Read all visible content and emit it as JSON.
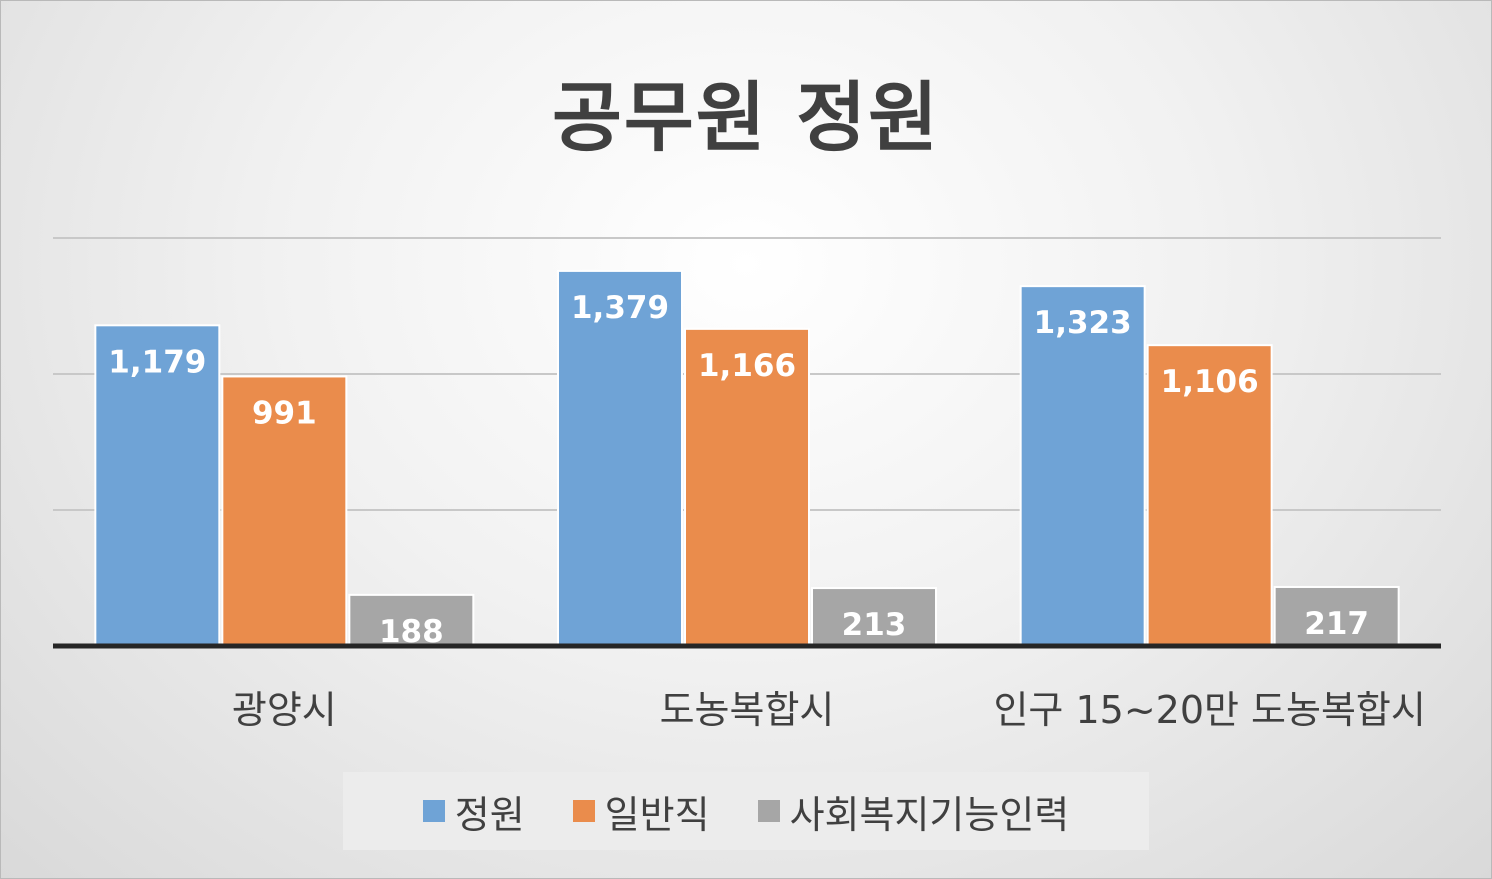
{
  "chart_data": {
    "type": "bar",
    "title": "공무원 정원",
    "categories": [
      "광양시",
      "도농복합시",
      "인구 15~20만 도농복합시"
    ],
    "series": [
      {
        "name": "정원",
        "values": [
          1179,
          1379,
          1323
        ],
        "color": "#6fa3d6",
        "labels": [
          "1,179",
          "1,379",
          "1,323"
        ]
      },
      {
        "name": "일반직",
        "values": [
          991,
          1166,
          1106
        ],
        "color": "#ea8c4c",
        "labels": [
          "991",
          "1,166",
          "1,106"
        ]
      },
      {
        "name": "사회복지기능인력",
        "values": [
          188,
          213,
          217
        ],
        "color": "#a6a6a6",
        "labels": [
          "188",
          "213",
          "217"
        ]
      }
    ],
    "ylim": [
      0,
      1500
    ],
    "grid": true,
    "legend": "bottom",
    "xlabel": "",
    "ylabel": ""
  }
}
